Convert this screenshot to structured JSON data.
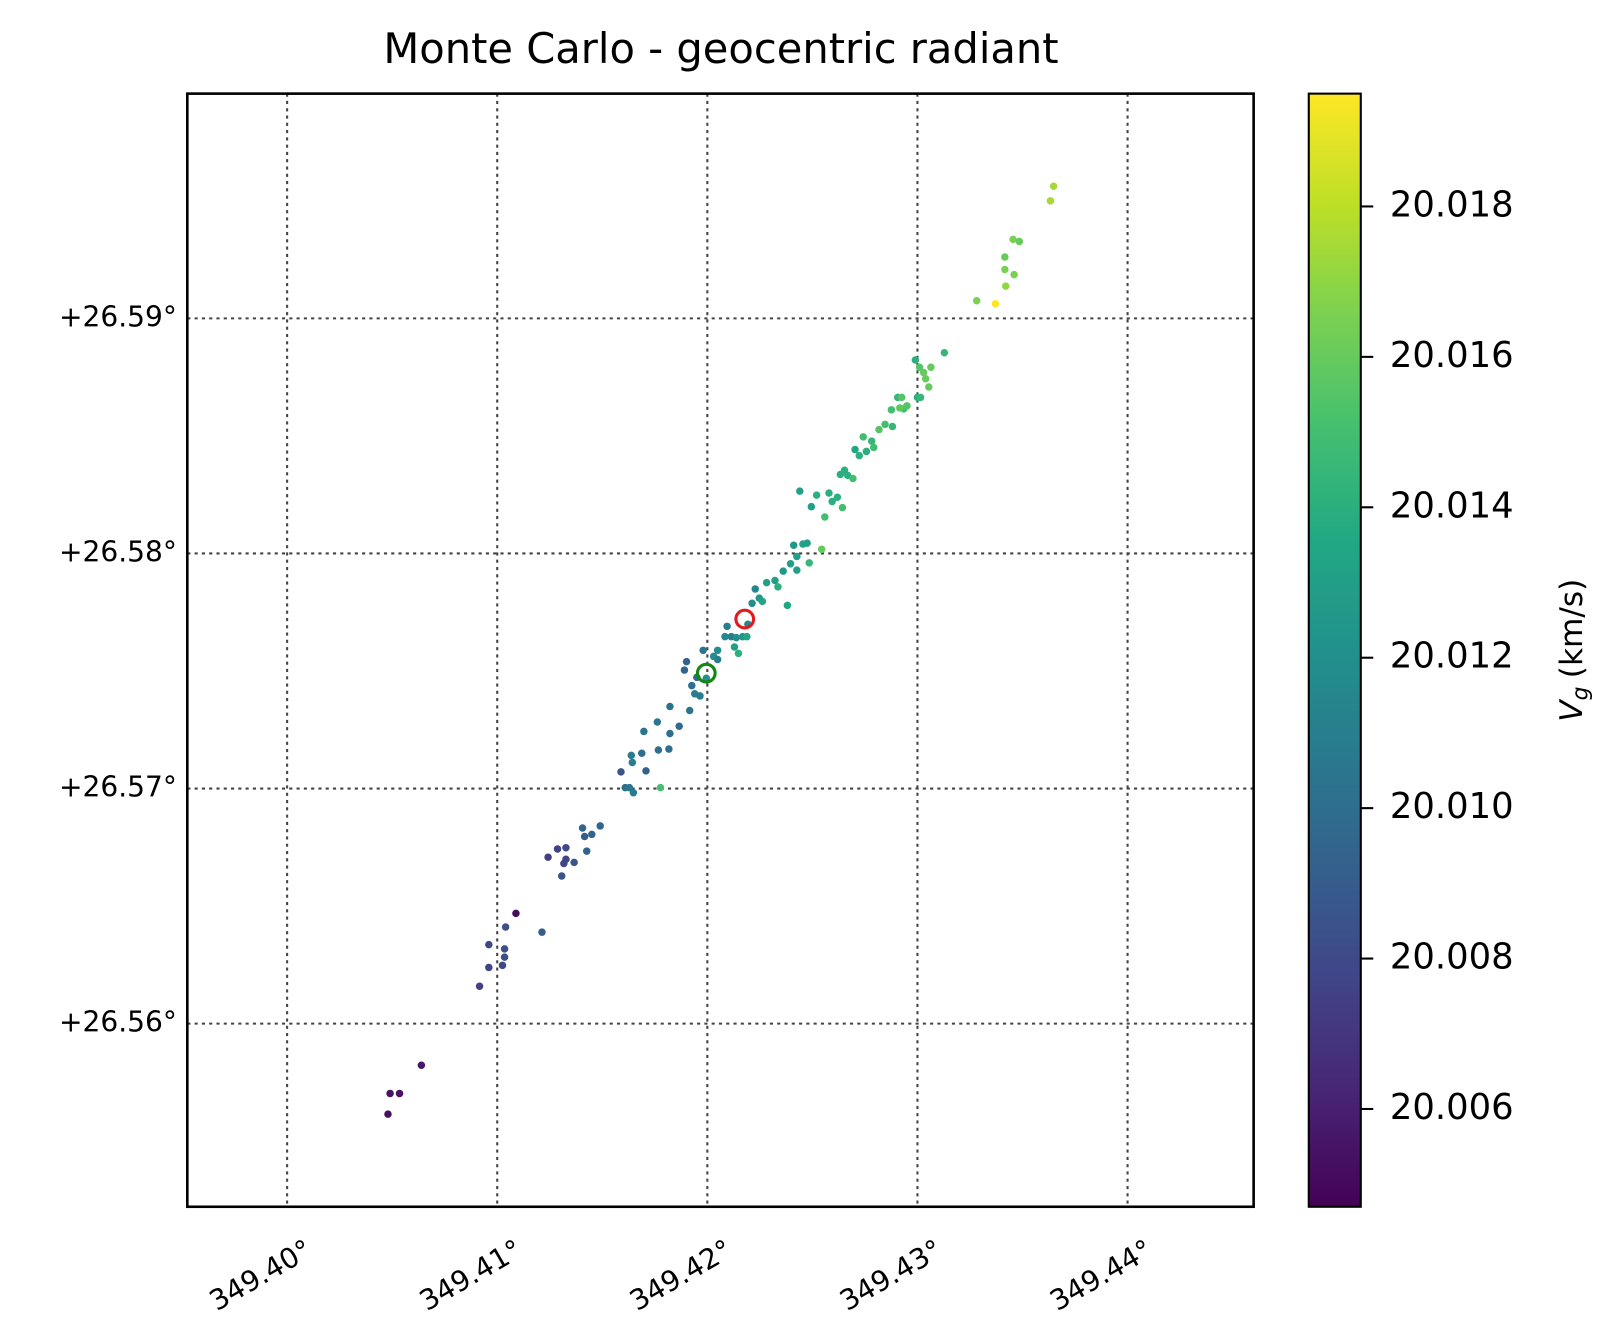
{
  "chart_data": {
    "type": "scatter",
    "title": "Monte Carlo - geocentric radiant",
    "xlim": [
      349.39525,
      349.446
    ],
    "ylim": [
      26.55221,
      26.59956
    ],
    "xticks": [
      {
        "value": 349.4,
        "label": "349.40°"
      },
      {
        "value": 349.41,
        "label": "349.41°"
      },
      {
        "value": 349.42,
        "label": "349.42°"
      },
      {
        "value": 349.43,
        "label": "349.43°"
      },
      {
        "value": 349.44,
        "label": "349.44°"
      }
    ],
    "yticks": [
      {
        "value": 26.56,
        "label": "+26.56°"
      },
      {
        "value": 26.57,
        "label": "+26.57°"
      },
      {
        "value": 26.58,
        "label": "+26.58°"
      },
      {
        "value": 26.59,
        "label": "+26.59°"
      }
    ],
    "grid": true,
    "colormap": "viridis",
    "clim": [
      20.0047,
      20.0195
    ],
    "cticks": [
      20.006,
      20.008,
      {
        "value": 20.01,
        "label": "20.010"
      },
      20.012,
      20.014,
      20.016,
      20.018
    ],
    "colorbar_label": [
      "V",
      "g",
      "(km/s)"
    ],
    "series": [
      {
        "x": [
          349.4048,
          349.4049,
          349.40535,
          349.40639,
          349.40916,
          349.4096,
          349.4096,
          349.41025,
          349.41035,
          349.41035,
          349.4104,
          349.41089,
          349.41213,
          349.41242,
          349.41287,
          349.41307,
          349.41317,
          349.41327,
          349.41327,
          349.41366,
          349.41406,
          349.41416,
          349.41426,
          349.4145,
          349.4149,
          349.41589,
          349.41609,
          349.41629,
          349.41643,
          349.41648,
          349.41638,
          349.41688,
          349.41698,
          349.41708,
          349.41762,
          349.41777,
          349.41767,
          349.41817,
          349.41822,
          349.41822,
          349.41866,
          349.41891,
          349.41901,
          349.41916,
          349.4194,
          349.41926,
          349.4195,
          349.41965,
          349.4198,
          349.41995,
          349.4203,
          349.42049,
          349.42049,
          349.42084,
          349.42094,
          349.42114,
          349.42129,
          349.42138,
          349.42148,
          349.42168,
          349.42188,
          349.42193,
          349.42213,
          349.42228,
          349.42247,
          349.42262,
          349.42282,
          349.42322,
          349.42336,
          349.42361,
          349.42381,
          349.42396,
          349.42411,
          349.42426,
          349.42426,
          349.42455,
          349.42475,
          349.42485,
          349.4244,
          349.42495,
          349.4252,
          349.42544,
          349.42559,
          349.42579,
          349.42594,
          349.42619,
          349.42643,
          349.42633,
          349.42653,
          349.42668,
          349.42693,
          349.42703,
          349.42723,
          349.42742,
          349.42757,
          349.42792,
          349.42782,
          349.42817,
          349.42846,
          349.42876,
          349.42881,
          349.42906,
          349.42925,
          349.42935,
          349.4295,
          349.42916,
          349.4299,
          349.43,
          349.43015,
          349.4301,
          349.43029,
          349.43039,
          349.43054,
          349.43064,
          349.43128,
          349.43282,
          349.43371,
          349.43416,
          349.43416,
          349.4342,
          349.4346,
          349.43455,
          349.43485,
          349.43633,
          349.43648
        ],
        "y": [
          26.55615,
          26.55703,
          26.55703,
          26.55823,
          26.56159,
          26.56239,
          26.56336,
          26.56248,
          26.56283,
          26.56318,
          26.56411,
          26.56469,
          26.56389,
          26.56708,
          26.56743,
          26.56628,
          26.56681,
          26.56699,
          26.56748,
          26.56686,
          26.56832,
          26.56796,
          26.56734,
          26.56805,
          26.56841,
          26.57071,
          26.57004,
          26.57004,
          26.57111,
          26.56982,
          26.57141,
          26.5715,
          26.57243,
          26.57075,
          26.57283,
          26.57004,
          26.57164,
          26.57168,
          26.57349,
          26.57234,
          26.57265,
          26.57504,
          26.5754,
          26.57332,
          26.57403,
          26.57438,
          26.57473,
          26.57394,
          26.57588,
          26.57469,
          26.57562,
          26.57588,
          26.57549,
          26.57646,
          26.5769,
          26.57646,
          26.57602,
          26.57642,
          26.57575,
          26.57646,
          26.57646,
          26.57699,
          26.57788,
          26.57849,
          26.5781,
          26.57796,
          26.57876,
          26.57885,
          26.57858,
          26.57925,
          26.57779,
          26.57956,
          26.58035,
          26.57987,
          26.57929,
          26.5804,
          26.58044,
          26.5796,
          26.58265,
          26.58199,
          26.58248,
          26.58018,
          26.58155,
          26.58257,
          26.58221,
          26.58239,
          26.58195,
          26.58336,
          26.58354,
          26.58332,
          26.58319,
          26.58442,
          26.58416,
          26.58496,
          26.58434,
          26.58451,
          26.58478,
          26.58527,
          26.58549,
          26.58611,
          26.5854,
          26.58664,
          26.58664,
          26.58615,
          26.58628,
          26.58619,
          26.58823,
          26.58664,
          26.58664,
          26.58792,
          26.5877,
          26.58743,
          26.58708,
          26.58792,
          26.58854,
          26.59075,
          26.59062,
          26.59261,
          26.59208,
          26.59137,
          26.59186,
          26.59336,
          26.59327,
          26.595,
          26.59562
        ],
        "c": [
          20.0053,
          20.0055,
          20.0055,
          20.0056,
          20.0075,
          20.0077,
          20.0078,
          20.008,
          20.0082,
          20.0082,
          20.0083,
          20.0052,
          20.009,
          20.0075,
          20.0076,
          20.0085,
          20.0078,
          20.0077,
          20.008,
          20.0085,
          20.0095,
          20.009,
          20.0095,
          20.0095,
          20.0095,
          20.0085,
          20.01,
          20.0105,
          20.011,
          20.0108,
          20.011,
          20.01,
          20.0103,
          20.0092,
          20.0105,
          20.015,
          20.01,
          20.01,
          20.0103,
          20.01,
          20.0098,
          20.0095,
          20.0093,
          20.0103,
          20.011,
          20.01,
          20.0098,
          20.0108,
          20.0105,
          20.012,
          20.012,
          20.0118,
          20.011,
          20.0115,
          20.011,
          20.011,
          20.013,
          20.012,
          20.014,
          20.0125,
          20.0135,
          20.0115,
          20.012,
          20.0115,
          20.0125,
          20.0135,
          20.013,
          20.013,
          20.014,
          20.0125,
          20.0135,
          20.013,
          20.0125,
          20.013,
          20.013,
          20.0132,
          20.013,
          20.0145,
          20.013,
          20.013,
          20.014,
          20.016,
          20.015,
          20.014,
          20.014,
          20.014,
          20.015,
          20.014,
          20.014,
          20.014,
          20.015,
          20.0135,
          20.014,
          20.015,
          20.014,
          20.015,
          20.0145,
          20.0155,
          20.015,
          20.015,
          20.0145,
          20.0145,
          20.0155,
          20.015,
          20.0155,
          20.0158,
          20.014,
          20.014,
          20.0145,
          20.0155,
          20.016,
          20.016,
          20.016,
          20.016,
          20.0145,
          20.0165,
          20.0195,
          20.016,
          20.0165,
          20.017,
          20.0165,
          20.0165,
          20.016,
          20.0175,
          20.0175
        ]
      }
    ],
    "markers": [
      {
        "color": "#e31a1c",
        "x": [
          349.42178
        ],
        "y": [
          26.57721
        ]
      },
      {
        "color": "#118811",
        "x": [
          349.41995
        ],
        "y": [
          26.57491
        ]
      }
    ]
  }
}
